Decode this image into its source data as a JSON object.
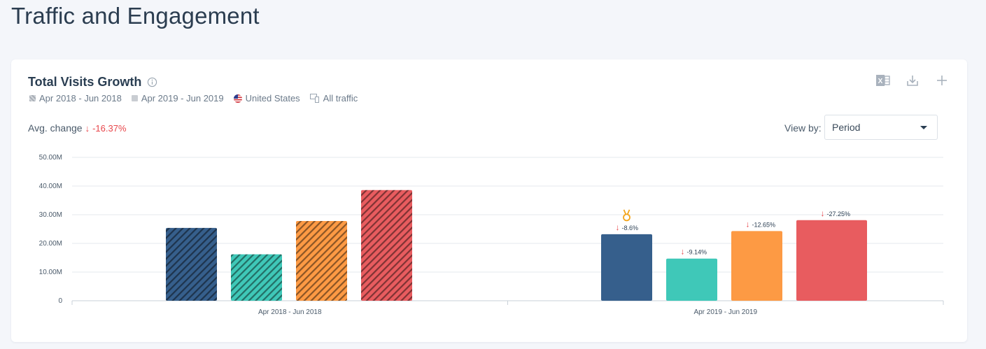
{
  "page": {
    "title": "Traffic and Engagement"
  },
  "card": {
    "title": "Total Visits Growth",
    "filters": {
      "period1": "Apr 2018 - Jun 2018",
      "period2": "Apr 2019 - Jun 2019",
      "country": "United States",
      "traffic": "All traffic"
    },
    "avg_change_label": "Avg. change",
    "avg_change_value": "-16.37%",
    "view_by_label": "View by:",
    "view_by_value": "Period",
    "actions": [
      "excel-icon",
      "download-icon",
      "add-icon"
    ]
  },
  "colors": {
    "s1": "#365f8c",
    "s2": "#3fc8b8",
    "s3": "#fd9a44",
    "s4": "#e85c5f",
    "negative": "#e8464b",
    "medal": "#f3a51c"
  },
  "chart_data": {
    "type": "bar",
    "categories": [
      "Apr 2018 - Jun 2018",
      "Apr 2019 - Jun 2019"
    ],
    "series": [
      {
        "values": [
          25.4,
          23.2
        ],
        "change": [
          null,
          "-8.6%"
        ]
      },
      {
        "values": [
          16.2,
          14.7
        ],
        "change": [
          null,
          "-9.14%"
        ]
      },
      {
        "values": [
          27.8,
          24.3
        ],
        "change": [
          null,
          "-12.65%"
        ]
      },
      {
        "values": [
          38.6,
          28.1
        ],
        "change": [
          null,
          "-27.25%"
        ]
      }
    ],
    "hatched_category": 0,
    "medal_on": {
      "category": 1,
      "series": 0
    },
    "ylim": [
      0,
      50
    ],
    "yticks": [
      "0",
      "10.00M",
      "20.00M",
      "30.00M",
      "40.00M",
      "50.00M"
    ],
    "grid": true
  }
}
